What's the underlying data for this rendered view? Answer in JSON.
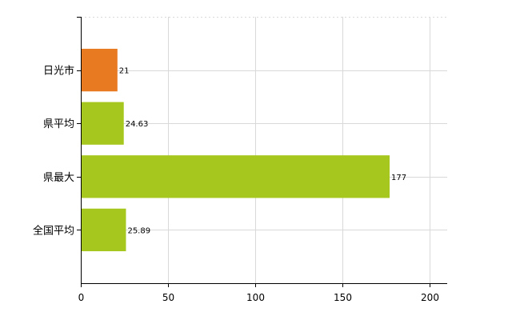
{
  "chart_data": {
    "type": "bar",
    "orientation": "horizontal",
    "title": "",
    "xlabel": "",
    "ylabel": "",
    "xlim": [
      0,
      210
    ],
    "x_ticks": [
      0,
      50,
      100,
      150,
      200
    ],
    "categories": [
      "日光市",
      "県平均",
      "県最大",
      "全国平均"
    ],
    "values": [
      21,
      24.63,
      177,
      25.89
    ],
    "data_labels": [
      "21",
      "24.63",
      "177",
      "25.89"
    ],
    "bar_colors": [
      "#e87a22",
      "#a6c81e",
      "#a6c81e",
      "#a6c81e"
    ],
    "grid": true,
    "legend": "none"
  }
}
